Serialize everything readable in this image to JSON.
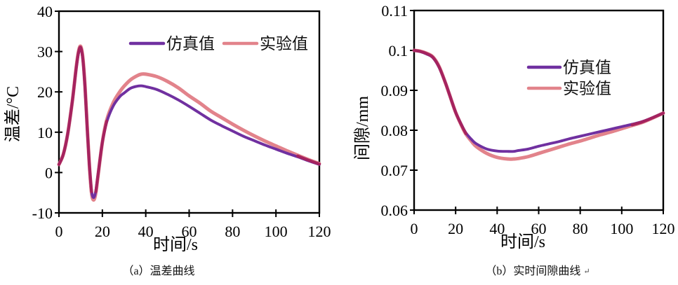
{
  "colors": {
    "simulation": "#7030A0",
    "experiment": "#E2838B",
    "overlap": "#A5235F",
    "axis": "#000000"
  },
  "chart_data": [
    {
      "type": "line",
      "caption": "（a）温差曲线",
      "xlabel": "时间/s",
      "ylabel": "温差/°C",
      "xlim": [
        0,
        120
      ],
      "ylim": [
        -10,
        40
      ],
      "xticks": [
        0,
        20,
        40,
        60,
        80,
        100,
        120
      ],
      "yticks": [
        40,
        30,
        20,
        10,
        0,
        -10
      ],
      "ytick_labels": [
        "40",
        "30",
        "20",
        "10",
        "0",
        "-10"
      ],
      "grid": false,
      "legend_position": "inside-top-horizontal",
      "x": [
        0,
        2,
        4,
        6,
        7,
        8,
        9,
        10,
        11,
        12,
        13,
        14,
        15,
        16,
        17,
        18,
        20,
        22,
        25,
        28,
        30,
        33,
        36,
        38,
        40,
        45,
        50,
        55,
        60,
        65,
        70,
        75,
        80,
        85,
        90,
        95,
        100,
        105,
        110,
        115,
        120
      ],
      "series": [
        {
          "name": "仿真值",
          "color": "simulation",
          "values": [
            2,
            4.5,
            9.5,
            17,
            21.5,
            26,
            29.5,
            30.8,
            28,
            21,
            11,
            2,
            -4.5,
            -6.2,
            -4.5,
            -0.5,
            7.5,
            12.5,
            16.5,
            18.8,
            19.7,
            20.9,
            21.4,
            21.5,
            21.3,
            20.6,
            19.4,
            18,
            16.4,
            14.7,
            13,
            11.6,
            10.3,
            9,
            7.9,
            6.8,
            5.8,
            4.8,
            3.9,
            2.9,
            2
          ]
        },
        {
          "name": "实验值",
          "color": "experiment",
          "values": [
            2,
            4.5,
            9.5,
            17,
            21.5,
            26.3,
            30,
            31.3,
            28.5,
            21.5,
            11.5,
            2,
            -5,
            -6.8,
            -5,
            -0.8,
            7.5,
            13,
            17.3,
            20,
            21.4,
            23,
            24,
            24.4,
            24.4,
            23.8,
            22.6,
            21,
            19,
            17.2,
            15.2,
            13.6,
            12,
            10.5,
            9.1,
            7.8,
            6.6,
            5.4,
            4.3,
            3.2,
            2.2
          ]
        }
      ]
    },
    {
      "type": "line",
      "caption": "（b）实时间隙曲线",
      "caption_mark": "↵",
      "xlabel": "时间/s",
      "ylabel": "间隙/mm",
      "xlim": [
        0,
        120
      ],
      "ylim": [
        0.06,
        0.11
      ],
      "xticks": [
        0,
        20,
        40,
        60,
        80,
        100,
        120
      ],
      "yticks": [
        0.11,
        0.1,
        0.09,
        0.08,
        0.07,
        0.06
      ],
      "ytick_labels": [
        "0.11",
        "0.1",
        "0.09",
        "0.08",
        "0.07",
        "0.06"
      ],
      "grid": false,
      "legend_position": "inside-right-vertical",
      "x": [
        0,
        3,
        6,
        9,
        12,
        15,
        17,
        20,
        23,
        25,
        28,
        30,
        35,
        40,
        45,
        48,
        50,
        55,
        60,
        65,
        70,
        75,
        80,
        85,
        90,
        95,
        100,
        105,
        110,
        115,
        120
      ],
      "series": [
        {
          "name": "仿真值",
          "color": "simulation",
          "values": [
            0.1,
            0.0997,
            0.0991,
            0.0982,
            0.0958,
            0.092,
            0.089,
            0.0845,
            0.0812,
            0.0793,
            0.0775,
            0.0766,
            0.0753,
            0.0748,
            0.0747,
            0.0747,
            0.0749,
            0.0753,
            0.076,
            0.0766,
            0.0772,
            0.0779,
            0.0785,
            0.0791,
            0.0797,
            0.0803,
            0.0809,
            0.0815,
            0.0822,
            0.0832,
            0.0843
          ]
        },
        {
          "name": "实验值",
          "color": "experiment",
          "values": [
            0.1,
            0.0998,
            0.0993,
            0.0984,
            0.096,
            0.092,
            0.089,
            0.0845,
            0.081,
            0.079,
            0.077,
            0.0759,
            0.0742,
            0.0732,
            0.0728,
            0.0728,
            0.0729,
            0.0734,
            0.0742,
            0.075,
            0.0758,
            0.0766,
            0.0773,
            0.0781,
            0.0789,
            0.0796,
            0.0804,
            0.0812,
            0.082,
            0.0831,
            0.0843
          ]
        }
      ]
    }
  ]
}
